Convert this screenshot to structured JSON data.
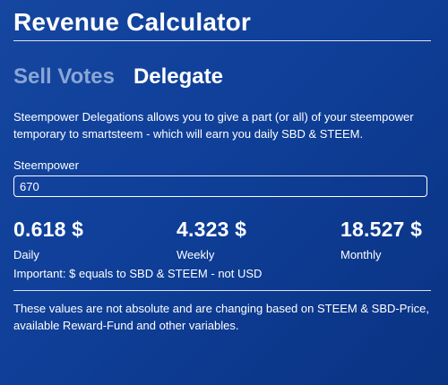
{
  "header": {
    "title": "Revenue Calculator"
  },
  "tabs": [
    {
      "label": "Sell Votes",
      "active": false
    },
    {
      "label": "Delegate",
      "active": true
    }
  ],
  "description": "Steempower Delegations allows you to give a part (or all) of your steempower temporary to smartsteem - which will earn you daily SBD & STEEM.",
  "steempower": {
    "label": "Steempower",
    "value": "670",
    "placeholder": ""
  },
  "results": {
    "daily": {
      "value": "0.618 $",
      "label": "Daily"
    },
    "weekly": {
      "value": "4.323 $",
      "label": "Weekly"
    },
    "monthly": {
      "value": "18.527 $",
      "label": "Monthly"
    }
  },
  "important": "Important: $ equals to SBD & STEEM - not USD",
  "note": "These values are not absolute and are changing based on STEEM & SBD-Price, available Reward-Fund and other variables.",
  "colors": {
    "background": "#1546a0",
    "inactive_tab": "#8aa6d6",
    "text": "#ffffff"
  }
}
